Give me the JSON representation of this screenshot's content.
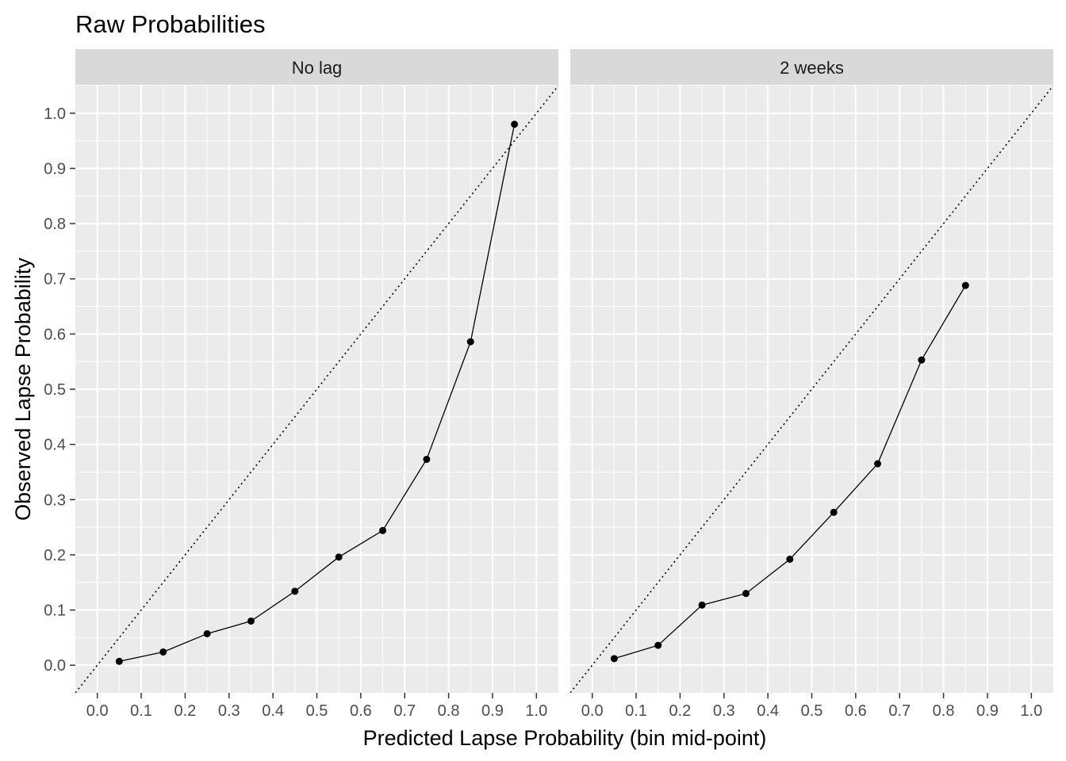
{
  "chart_data": {
    "type": "line",
    "title": "Raw Probabilities",
    "xlabel": "Predicted Lapse Probability (bin mid-point)",
    "ylabel": "Observed Lapse Probability",
    "xlim": [
      -0.05,
      1.05
    ],
    "ylim": [
      -0.05,
      1.05
    ],
    "x_ticks": [
      "0.0",
      "0.1",
      "0.2",
      "0.3",
      "0.4",
      "0.5",
      "0.6",
      "0.7",
      "0.8",
      "0.9",
      "1.0"
    ],
    "y_ticks": [
      "0.0",
      "0.1",
      "0.2",
      "0.3",
      "0.4",
      "0.5",
      "0.6",
      "0.7",
      "0.8",
      "0.9",
      "1.0"
    ],
    "grid": true,
    "reference_line": "y = x (dotted)",
    "colors": {
      "panel_bg": "#ebebeb",
      "strip_bg": "#d9d9d9",
      "grid": "#ffffff",
      "series": "#000000"
    },
    "panels": [
      {
        "label": "No lag",
        "x": [
          0.05,
          0.15,
          0.25,
          0.35,
          0.45,
          0.55,
          0.65,
          0.75,
          0.85,
          0.95
        ],
        "y": [
          0.007,
          0.024,
          0.057,
          0.08,
          0.134,
          0.196,
          0.244,
          0.373,
          0.586,
          0.98
        ]
      },
      {
        "label": "2 weeks",
        "x": [
          0.05,
          0.15,
          0.25,
          0.35,
          0.45,
          0.55,
          0.65,
          0.75,
          0.85
        ],
        "y": [
          0.012,
          0.036,
          0.109,
          0.13,
          0.192,
          0.277,
          0.365,
          0.553,
          0.688
        ]
      }
    ]
  }
}
